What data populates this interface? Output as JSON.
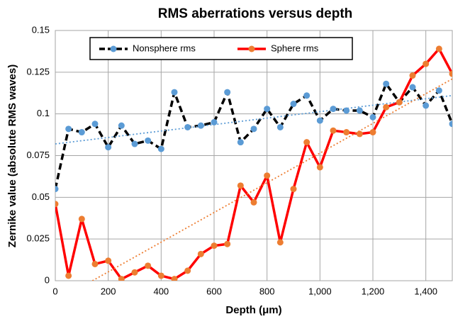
{
  "chart_data": {
    "type": "line",
    "title": "RMS aberrations versus depth",
    "xlabel": "Depth (μm)",
    "ylabel": "Zernike value (absolute RMS waves)",
    "x": [
      0,
      50,
      100,
      150,
      200,
      250,
      300,
      350,
      400,
      450,
      500,
      550,
      600,
      650,
      700,
      750,
      800,
      850,
      900,
      950,
      1000,
      1050,
      1100,
      1150,
      1200,
      1250,
      1300,
      1350,
      1400,
      1450,
      1500
    ],
    "series": [
      {
        "name": "Nonsphere rms",
        "color": "#000000",
        "marker_color": "#5b9bd5",
        "dash": true,
        "values": [
          0.055,
          0.091,
          0.089,
          0.094,
          0.08,
          0.093,
          0.082,
          0.084,
          0.079,
          0.113,
          0.092,
          0.093,
          0.095,
          0.113,
          0.083,
          0.091,
          0.103,
          0.092,
          0.106,
          0.111,
          0.096,
          0.103,
          0.102,
          0.102,
          0.098,
          0.118,
          0.107,
          0.116,
          0.105,
          0.114,
          0.094
        ]
      },
      {
        "name": "Sphere rms",
        "color": "#ff0000",
        "marker_color": "#ed7d31",
        "dash": false,
        "values": [
          0.046,
          0.003,
          0.037,
          0.01,
          0.012,
          0.001,
          0.005,
          0.009,
          0.003,
          0.001,
          0.006,
          0.016,
          0.021,
          0.022,
          0.057,
          0.047,
          0.063,
          0.023,
          0.055,
          0.083,
          0.068,
          0.09,
          0.089,
          0.088,
          0.089,
          0.104,
          0.107,
          0.123,
          0.13,
          0.139,
          0.124
        ]
      }
    ],
    "trendlines": [
      {
        "color": "#5b9bd5",
        "x": [
          0,
          1500
        ],
        "values": [
          0.082,
          0.111
        ]
      },
      {
        "color": "#ed7d31",
        "x": [
          0,
          1500
        ],
        "values": [
          -0.0125,
          0.121
        ]
      }
    ],
    "xlim": [
      0,
      1500
    ],
    "xticks": [
      0,
      200,
      400,
      600,
      800,
      {
        "value": 1000,
        "label": "1,000"
      },
      {
        "value": 1200,
        "label": "1,200"
      },
      {
        "value": 1400,
        "label": "1,400"
      }
    ],
    "ylim": [
      0,
      0.15
    ],
    "yticks": [
      0,
      0.025,
      0.05,
      0.075,
      0.1,
      0.125,
      0.15
    ],
    "grid": true,
    "legend": "top"
  }
}
